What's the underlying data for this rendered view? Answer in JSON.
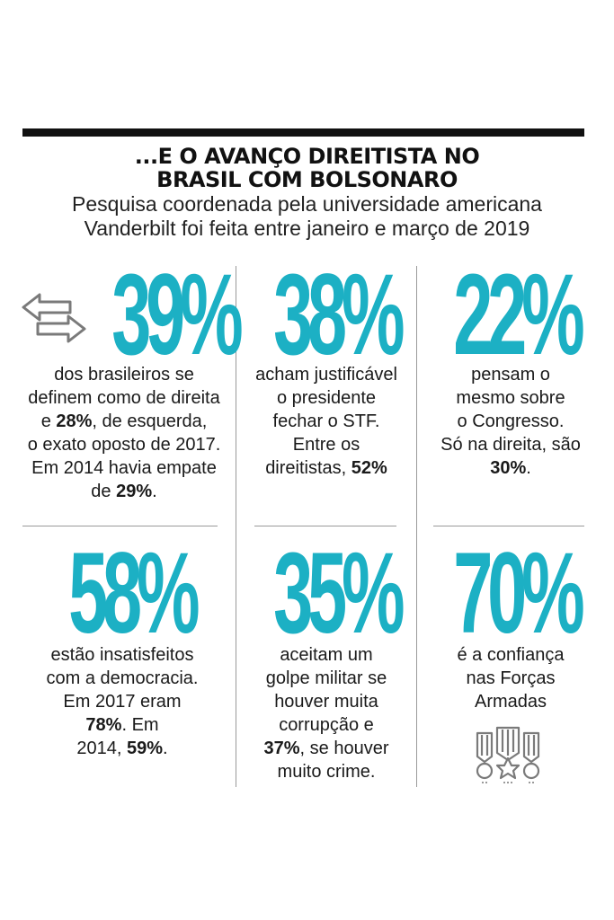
{
  "header": {
    "title_line1": "...E O AVANÇO DIREITISTA NO",
    "title_line2": "BRASIL COM BOLSONARO",
    "subtitle_line1": "Pesquisa coordenada pela universidade americana",
    "subtitle_line2": "Vanderbilt foi feita entre janeiro e março de 2019"
  },
  "colors": {
    "accent": "#1cb0c4",
    "text": "#1a1a1a",
    "rule": "#111111",
    "divider": "#9a9a9a",
    "icon": "#7a7a7a"
  },
  "stats": [
    {
      "value": "39%",
      "icon": "arrows-left-right-icon",
      "lines": [
        [
          {
            "t": "dos brasileiros se"
          }
        ],
        [
          {
            "t": "definem como de direita"
          }
        ],
        [
          {
            "t": "e "
          },
          {
            "t": "28%",
            "b": true
          },
          {
            "t": ", de esquerda,"
          }
        ],
        [
          {
            "t": "o exato oposto de 2017."
          }
        ],
        [
          {
            "t": "Em 2014 havia empate"
          }
        ],
        [
          {
            "t": "de "
          },
          {
            "t": "29%",
            "b": true
          },
          {
            "t": "."
          }
        ]
      ]
    },
    {
      "value": "38%",
      "lines": [
        [
          {
            "t": "acham justificável"
          }
        ],
        [
          {
            "t": "o presidente"
          }
        ],
        [
          {
            "t": "fechar o STF."
          }
        ],
        [
          {
            "t": "Entre os"
          }
        ],
        [
          {
            "t": "direitistas, "
          },
          {
            "t": "52%",
            "b": true
          }
        ]
      ]
    },
    {
      "value": "22%",
      "lines": [
        [
          {
            "t": "pensam o"
          }
        ],
        [
          {
            "t": "mesmo sobre"
          }
        ],
        [
          {
            "t": "o Congresso."
          }
        ],
        [
          {
            "t": "Só na direita, são"
          }
        ],
        [
          {
            "t": "30%",
            "b": true
          },
          {
            "t": "."
          }
        ]
      ]
    },
    {
      "value": "58%",
      "lines": [
        [
          {
            "t": "estão insatisfeitos"
          }
        ],
        [
          {
            "t": "com a democracia."
          }
        ],
        [
          {
            "t": "Em 2017 eram"
          }
        ],
        [
          {
            "t": "78%",
            "b": true
          },
          {
            "t": ". Em"
          }
        ],
        [
          {
            "t": "2014, "
          },
          {
            "t": "59%",
            "b": true
          },
          {
            "t": "."
          }
        ]
      ]
    },
    {
      "value": "35%",
      "lines": [
        [
          {
            "t": "aceitam um"
          }
        ],
        [
          {
            "t": "golpe militar se"
          }
        ],
        [
          {
            "t": "houver muita"
          }
        ],
        [
          {
            "t": "corrupção e"
          }
        ],
        [
          {
            "t": "37%",
            "b": true
          },
          {
            "t": ", se houver"
          }
        ],
        [
          {
            "t": "muito crime."
          }
        ]
      ]
    },
    {
      "value": "70%",
      "icon": "military-medals-icon",
      "lines": [
        [
          {
            "t": "é a confiança"
          }
        ],
        [
          {
            "t": "nas Forças"
          }
        ],
        [
          {
            "t": "Armadas"
          }
        ]
      ]
    }
  ]
}
